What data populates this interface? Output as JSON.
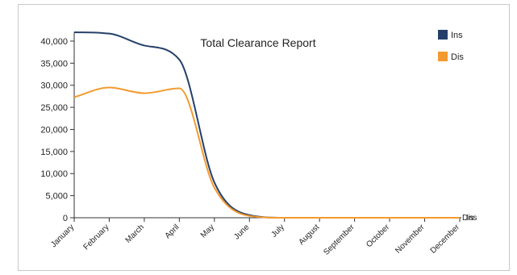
{
  "chart_data": {
    "type": "line",
    "title": "Total Clearance Report",
    "categories": [
      "January",
      "February",
      "March",
      "April",
      "May",
      "June",
      "July",
      "August",
      "September",
      "October",
      "November",
      "December"
    ],
    "ylim": [
      0,
      42000
    ],
    "yticks": [
      0,
      5000,
      10000,
      15000,
      20000,
      25000,
      30000,
      35000,
      40000
    ],
    "ytick_labels": [
      "0",
      "5,000",
      "10,000",
      "15,000",
      "20,000",
      "25,000",
      "30,000",
      "35,000",
      "40,000"
    ],
    "grid": false,
    "legend": "top-right",
    "series": [
      {
        "name": "Ins",
        "color": "#24406a",
        "values": [
          42000,
          41700,
          39000,
          35800,
          8000,
          600,
          0,
          0,
          0,
          0,
          0,
          0
        ]
      },
      {
        "name": "Dis",
        "color": "#f39a2e",
        "values": [
          27300,
          29500,
          28200,
          29300,
          6800,
          400,
          0,
          0,
          0,
          0,
          0,
          0
        ]
      }
    ],
    "end_labels": [
      "Dis",
      "Ins"
    ]
  }
}
